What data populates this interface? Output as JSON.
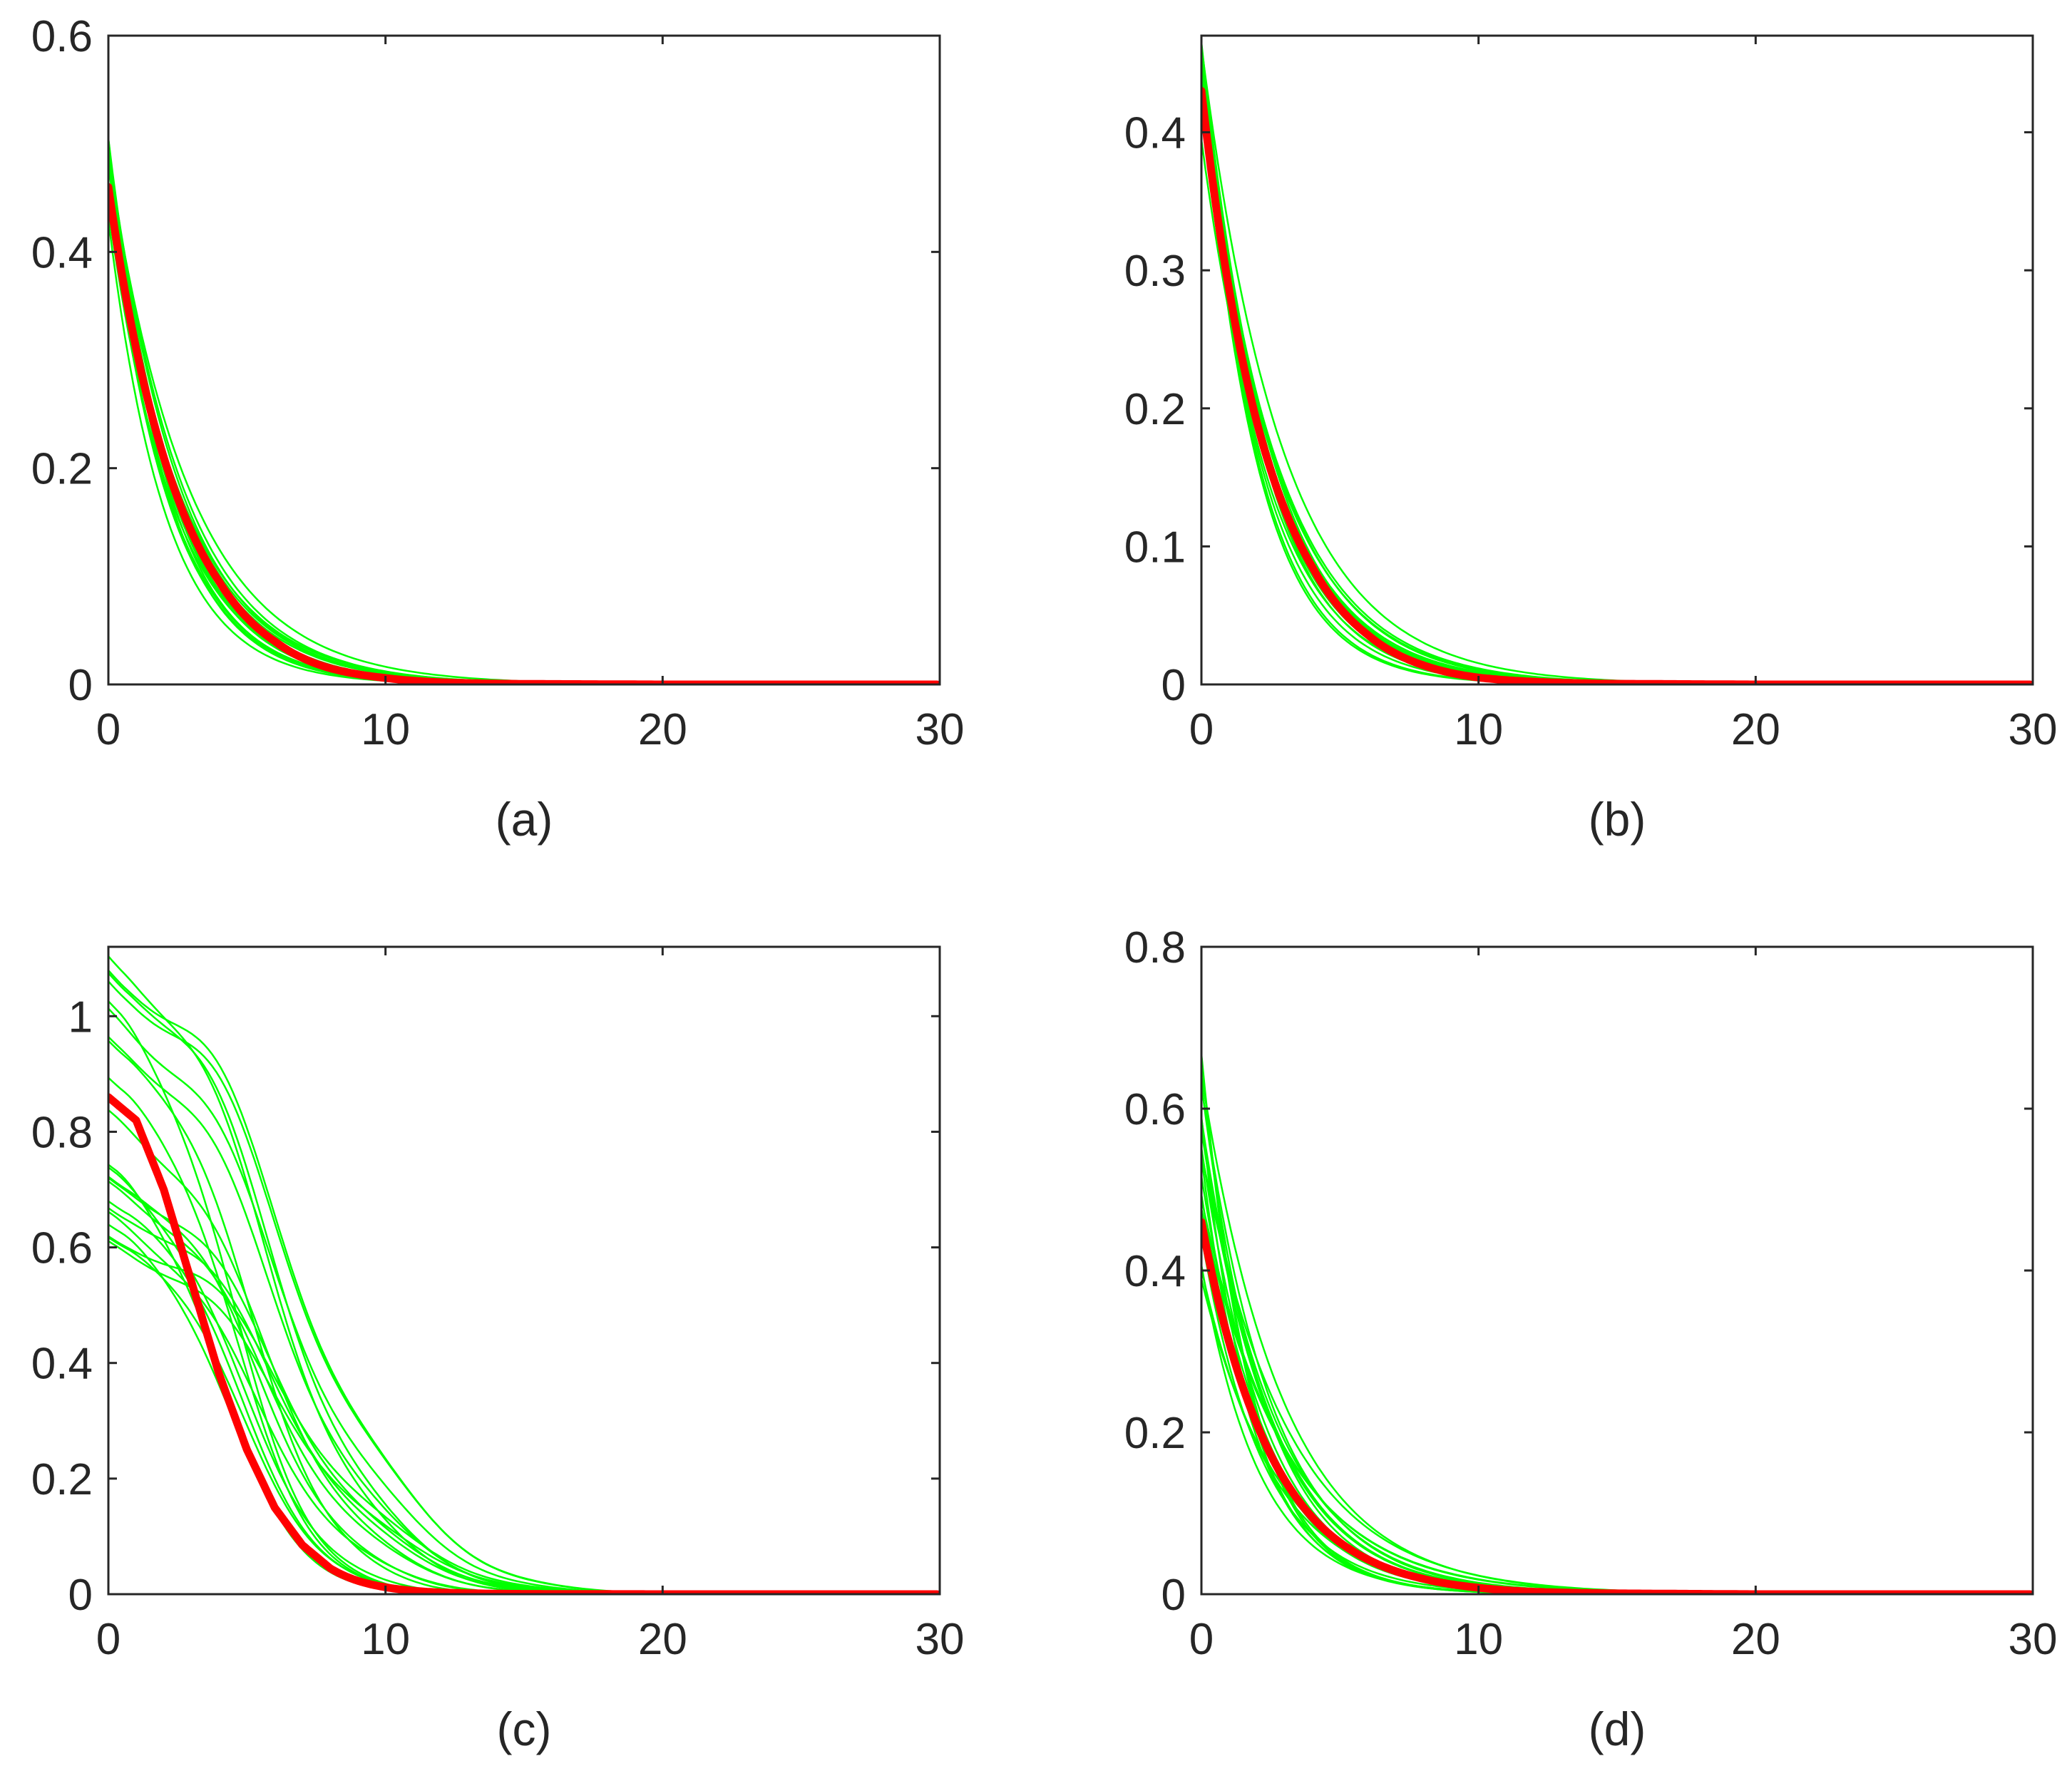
{
  "figure": {
    "sample_color": "#00ff00",
    "mean_color": "#ff0000",
    "axis_color": "#262626"
  },
  "chart_data": [
    {
      "type": "line",
      "panel": "a",
      "caption": "(a)",
      "xlim": [
        0,
        30
      ],
      "ylim": [
        0,
        0.6
      ],
      "xticks": [
        0,
        10,
        20,
        30
      ],
      "yticks": [
        0,
        0.2,
        0.4,
        0.6
      ],
      "xtick_labels": [
        "0",
        "10",
        "20",
        "30"
      ],
      "ytick_labels": [
        "0",
        "0.2",
        "0.4",
        "0.6"
      ],
      "mean_series": {
        "name": "mean",
        "color": "#ff0000",
        "x": [
          0,
          2,
          4,
          6,
          8,
          10,
          12,
          15,
          20,
          25,
          30
        ],
        "y": [
          0.46,
          0.21,
          0.095,
          0.04,
          0.015,
          0.006,
          0.002,
          0.0005,
          0,
          0,
          0
        ]
      },
      "sample_envelope": {
        "color": "#00ff00",
        "count": 20,
        "y0_range": [
          0.43,
          0.51
        ],
        "decay_rate_range": [
          0.33,
          0.5
        ],
        "shape": "exponential"
      }
    },
    {
      "type": "line",
      "panel": "b",
      "caption": "(b)",
      "xlim": [
        0,
        30
      ],
      "ylim": [
        0,
        0.47
      ],
      "xticks": [
        0,
        10,
        20,
        30
      ],
      "yticks": [
        0,
        0.1,
        0.2,
        0.3,
        0.4
      ],
      "xtick_labels": [
        "0",
        "10",
        "20",
        "30"
      ],
      "ytick_labels": [
        "0",
        "0.1",
        "0.2",
        "0.3",
        "0.4"
      ],
      "mean_series": {
        "name": "mean",
        "color": "#ff0000",
        "x": [
          0,
          2,
          4,
          6,
          8,
          10,
          12,
          15,
          20,
          25,
          30
        ],
        "y": [
          0.43,
          0.19,
          0.085,
          0.036,
          0.014,
          0.005,
          0.002,
          0.0005,
          0,
          0,
          0
        ]
      },
      "sample_envelope": {
        "color": "#00ff00",
        "count": 20,
        "y0_range": [
          0.39,
          0.47
        ],
        "decay_rate_range": [
          0.33,
          0.52
        ],
        "shape": "exponential"
      }
    },
    {
      "type": "line",
      "panel": "c",
      "caption": "(c)",
      "xlim": [
        0,
        30
      ],
      "ylim": [
        0,
        1.12
      ],
      "xticks": [
        0,
        10,
        20,
        30
      ],
      "yticks": [
        0,
        0.2,
        0.4,
        0.6,
        0.8,
        1.0
      ],
      "xtick_labels": [
        "0",
        "10",
        "20",
        "30"
      ],
      "ytick_labels": [
        "0",
        "0.2",
        "0.4",
        "0.6",
        "0.8",
        "1"
      ],
      "mean_series": {
        "name": "mean",
        "color": "#ff0000",
        "x": [
          0,
          1,
          2,
          3,
          4,
          5,
          6,
          7,
          8,
          10,
          12,
          15,
          20,
          25,
          30
        ],
        "y": [
          0.86,
          0.82,
          0.7,
          0.54,
          0.38,
          0.25,
          0.15,
          0.085,
          0.045,
          0.012,
          0.003,
          0.0005,
          0,
          0,
          0
        ]
      },
      "sample_envelope": {
        "color": "#00ff00",
        "count": 22,
        "y0_range": [
          0.6,
          1.12
        ],
        "width_range": [
          3.2,
          5.6
        ],
        "shape": "gaussian"
      }
    },
    {
      "type": "line",
      "panel": "d",
      "caption": "(d)",
      "xlim": [
        0,
        30
      ],
      "ylim": [
        0,
        0.8
      ],
      "xticks": [
        0,
        10,
        20,
        30
      ],
      "yticks": [
        0,
        0.2,
        0.4,
        0.6,
        0.8
      ],
      "xtick_labels": [
        "0",
        "10",
        "20",
        "30"
      ],
      "ytick_labels": [
        "0",
        "0.2",
        "0.4",
        "0.6",
        "0.8"
      ],
      "mean_series": {
        "name": "mean",
        "color": "#ff0000",
        "x": [
          0,
          2,
          4,
          6,
          8,
          10,
          12,
          15,
          20,
          25,
          30
        ],
        "y": [
          0.46,
          0.21,
          0.095,
          0.043,
          0.019,
          0.008,
          0.003,
          0.001,
          0,
          0,
          0
        ]
      },
      "sample_envelope": {
        "color": "#00ff00",
        "count": 20,
        "y0_range": [
          0.32,
          0.67
        ],
        "decay_rate_range": [
          0.28,
          0.55
        ],
        "shape": "exponential"
      }
    }
  ]
}
